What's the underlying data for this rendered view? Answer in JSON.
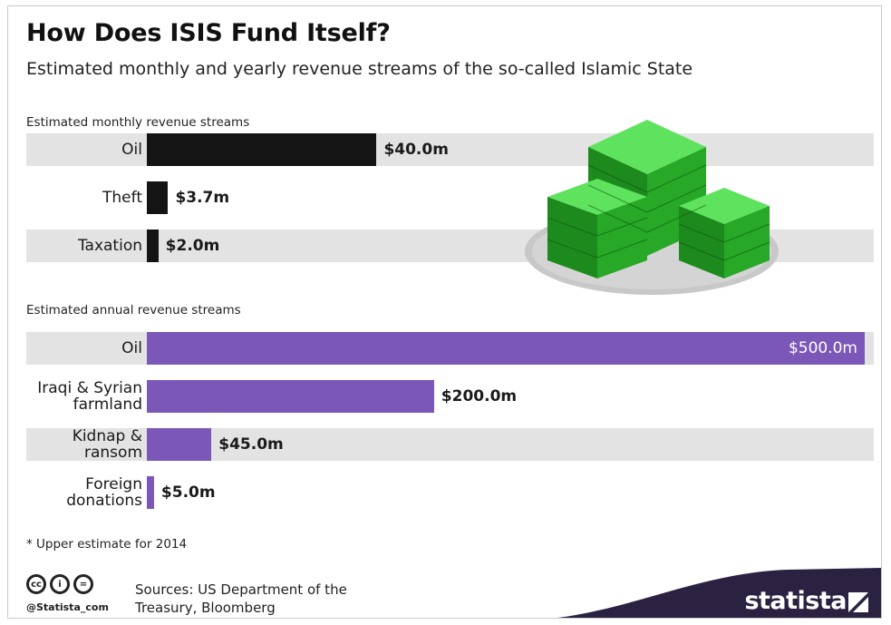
{
  "header": {
    "title": "How Does ISIS Fund Itself?",
    "subtitle": "Estimated monthly and yearly revenue streams of the so-called Islamic State"
  },
  "chart_data": [
    {
      "type": "bar",
      "orientation": "horizontal",
      "title": "Estimated monthly revenue streams",
      "categories": [
        "Oil",
        "Theft",
        "Taxation"
      ],
      "values": [
        40.0,
        3.7,
        2.0
      ],
      "labels": [
        "$40.0m",
        "$3.7m",
        "$2.0m"
      ],
      "unit": "$m",
      "bar_color": "#141414"
    },
    {
      "type": "bar",
      "orientation": "horizontal",
      "title": "Estimated annual revenue streams",
      "categories": [
        "Oil",
        "Iraqi & Syrian farmland",
        "Kidnap & ransom",
        "Foreign donations"
      ],
      "category_lines": [
        [
          "Oil"
        ],
        [
          "Iraqi & Syrian",
          "farmland"
        ],
        [
          "Kidnap &",
          "ransom"
        ],
        [
          "Foreign",
          "donations"
        ]
      ],
      "values": [
        500.0,
        200.0,
        45.0,
        5.0
      ],
      "labels": [
        "$500.0m",
        "$200.0m",
        "$45.0m",
        "$5.0m"
      ],
      "unit": "$m",
      "bar_color": "#7b57b8"
    }
  ],
  "footer": {
    "footnote": "* Upper estimate for 2014",
    "cc_icons": [
      "cc",
      "i",
      "="
    ],
    "handle": "@Statista_com",
    "sources": "Sources: US Department of the Treasury, Bloomberg",
    "brand": "statista",
    "brand_color": "#2b2141"
  },
  "illustration": {
    "icon": "money-stack-icon",
    "color": "#2ecc40"
  }
}
